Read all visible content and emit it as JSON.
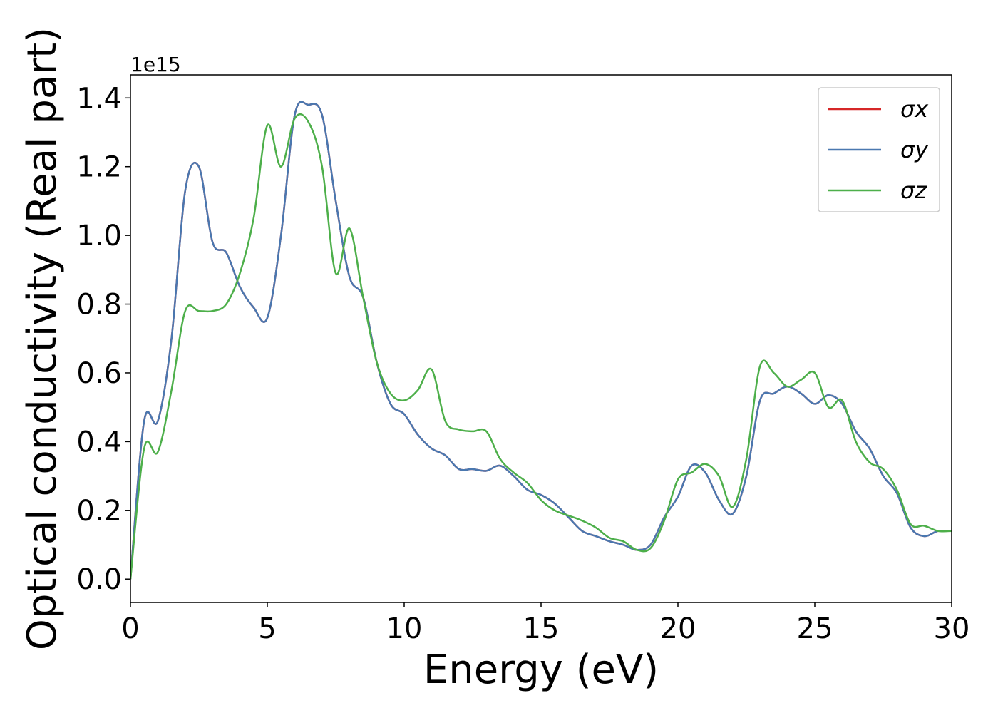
{
  "chart_data": {
    "type": "line",
    "xlabel": "Energy (eV)",
    "ylabel": "Optical conductivity (Real part)",
    "y_offset_label": "1e15",
    "x": [
      0,
      0.5,
      1,
      1.5,
      2,
      2.5,
      3,
      3.5,
      4,
      4.5,
      5,
      5.5,
      6,
      6.5,
      7,
      7.5,
      8,
      8.5,
      9,
      9.5,
      10,
      10.5,
      11,
      11.5,
      12,
      12.5,
      13,
      13.5,
      14,
      14.5,
      15,
      15.5,
      16,
      16.5,
      17,
      17.5,
      18,
      18.5,
      19,
      19.5,
      20,
      20.5,
      21,
      21.5,
      22,
      22.5,
      23,
      23.5,
      24,
      24.5,
      25,
      25.5,
      26,
      26.5,
      27,
      27.5,
      28,
      28.5,
      29,
      29.5,
      30
    ],
    "series": [
      {
        "name": "σx",
        "color": "#d62728",
        "values": [
          0,
          0.46,
          0.46,
          0.7,
          1.13,
          1.2,
          0.98,
          0.95,
          0.85,
          0.79,
          0.76,
          1.0,
          1.35,
          1.38,
          1.35,
          1.1,
          0.88,
          0.82,
          0.63,
          0.51,
          0.48,
          0.42,
          0.38,
          0.36,
          0.32,
          0.32,
          0.315,
          0.33,
          0.3,
          0.26,
          0.245,
          0.22,
          0.18,
          0.14,
          0.125,
          0.11,
          0.1,
          0.085,
          0.1,
          0.18,
          0.24,
          0.33,
          0.31,
          0.23,
          0.19,
          0.3,
          0.52,
          0.54,
          0.56,
          0.54,
          0.51,
          0.535,
          0.51,
          0.43,
          0.38,
          0.3,
          0.25,
          0.15,
          0.125,
          0.14,
          0.14
        ]
      },
      {
        "name": "σy",
        "color": "#4a78b0",
        "values": [
          0,
          0.46,
          0.46,
          0.7,
          1.13,
          1.2,
          0.98,
          0.95,
          0.85,
          0.79,
          0.76,
          1.0,
          1.35,
          1.38,
          1.35,
          1.1,
          0.88,
          0.82,
          0.63,
          0.51,
          0.48,
          0.42,
          0.38,
          0.36,
          0.32,
          0.32,
          0.315,
          0.33,
          0.3,
          0.26,
          0.245,
          0.22,
          0.18,
          0.14,
          0.125,
          0.11,
          0.1,
          0.085,
          0.1,
          0.18,
          0.24,
          0.33,
          0.31,
          0.23,
          0.19,
          0.3,
          0.52,
          0.54,
          0.56,
          0.54,
          0.51,
          0.535,
          0.51,
          0.43,
          0.38,
          0.3,
          0.25,
          0.15,
          0.125,
          0.14,
          0.14
        ]
      },
      {
        "name": "σz",
        "color": "#4daf4a",
        "values": [
          0,
          0.38,
          0.37,
          0.55,
          0.78,
          0.78,
          0.78,
          0.8,
          0.89,
          1.05,
          1.32,
          1.2,
          1.34,
          1.33,
          1.2,
          0.89,
          1.02,
          0.82,
          0.63,
          0.54,
          0.52,
          0.55,
          0.61,
          0.46,
          0.435,
          0.43,
          0.43,
          0.35,
          0.31,
          0.28,
          0.23,
          0.2,
          0.185,
          0.17,
          0.15,
          0.12,
          0.11,
          0.085,
          0.09,
          0.17,
          0.29,
          0.31,
          0.335,
          0.3,
          0.21,
          0.35,
          0.62,
          0.6,
          0.56,
          0.58,
          0.6,
          0.5,
          0.52,
          0.4,
          0.34,
          0.32,
          0.26,
          0.16,
          0.155,
          0.14,
          0.14
        ]
      }
    ],
    "xlim": [
      0,
      30
    ],
    "ylim": [
      -0.068,
      1.467
    ],
    "xticks": [
      0,
      5,
      10,
      15,
      20,
      25,
      30
    ],
    "yticks": [
      {
        "value": 0,
        "label": "0.0"
      },
      0.2,
      0.4,
      0.6,
      0.8,
      {
        "value": 1,
        "label": "1.0"
      },
      1.2,
      1.4
    ],
    "legend": "upper right",
    "grid": false
  }
}
